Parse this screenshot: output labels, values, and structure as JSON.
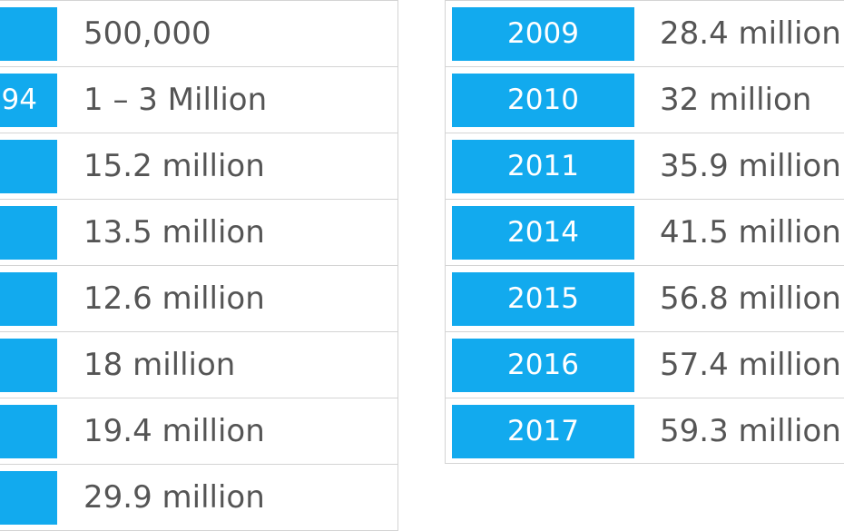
{
  "left_table": {
    "rows": [
      {
        "year": "",
        "value": "500,000"
      },
      {
        "year": "94",
        "value": "1 – 3 Million"
      },
      {
        "year": "",
        "value": "15.2 million"
      },
      {
        "year": "",
        "value": "13.5 million"
      },
      {
        "year": "",
        "value": "12.6 million"
      },
      {
        "year": "",
        "value": "18 million"
      },
      {
        "year": "",
        "value": "19.4 million"
      },
      {
        "year": "",
        "value": "29.9 million"
      }
    ]
  },
  "right_table": {
    "rows": [
      {
        "year": "2009",
        "value": "28.4 million"
      },
      {
        "year": "2010",
        "value": "32 million"
      },
      {
        "year": "2011",
        "value": "35.9 million"
      },
      {
        "year": "2014",
        "value": "41.5 million"
      },
      {
        "year": "2015",
        "value": "56.8 million"
      },
      {
        "year": "2016",
        "value": "57.4 million"
      },
      {
        "year": "2017",
        "value": "59.3 million"
      }
    ]
  },
  "colors": {
    "year_badge": "#12aaee",
    "value_text": "#555555",
    "border": "#d4d4d4"
  }
}
